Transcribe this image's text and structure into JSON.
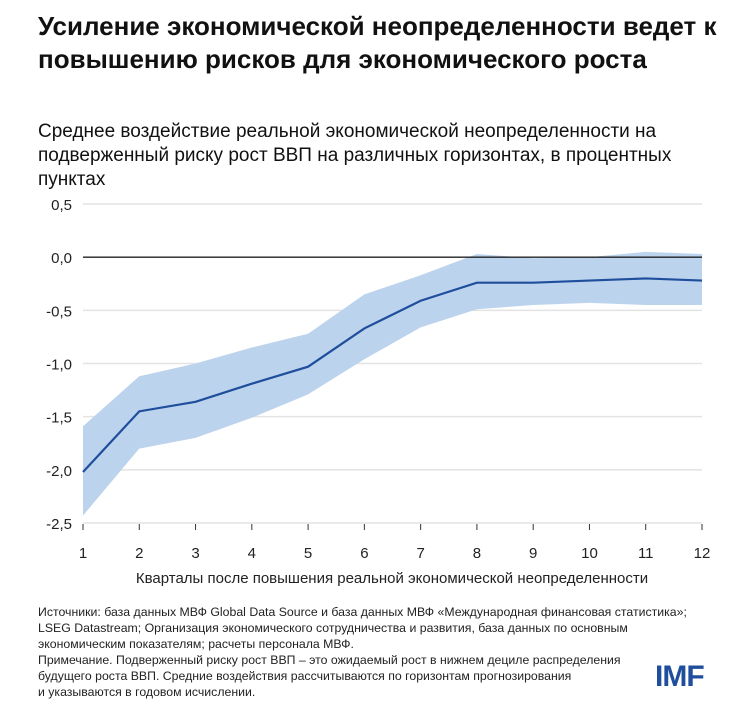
{
  "title": "Усиление экономической неопределенности ведет к повышению рисков для экономического роста",
  "subtitle": "Среднее воздействие реальной экономической неопределенности на подверженный риску рост ВВП на различных горизонтах, в процентных пунктах",
  "notes": {
    "sources": "Источники: база данных МВФ Global Data Source и база данных МВФ «Международная финансовая статистика»;",
    "sources2": "LSEG Datastream; Организация экономического сотрудничества и развития, база данных по основным",
    "sources3": "экономическим показателям; расчеты персонала МВФ.",
    "note1": "Примечание. Подверженный риску рост ВВП – это ожидаемый рост в нижнем дециле распределения",
    "note2": "будущего роста ВВП. Средние воздействия рассчитываются по горизонтам прогнозирования",
    "note3": "и указываются в годовом исчислении."
  },
  "logo": "IMF",
  "chart_data": {
    "type": "line",
    "xlabel": "Кварталы после повышения реальной экономической неопределенности",
    "ylabel": "",
    "x": [
      1,
      2,
      3,
      4,
      5,
      6,
      7,
      8,
      9,
      10,
      11,
      12
    ],
    "x_tick_labels": [
      "1",
      "2",
      "3",
      "4",
      "5",
      "6",
      "7",
      "8",
      "9",
      "10",
      "11",
      "12"
    ],
    "y_tick_labels": [
      "0,5",
      "0,0",
      "-0,5",
      "-1,0",
      "-1,5",
      "-2,0",
      "-2,5"
    ],
    "y_ticks": [
      0.5,
      0,
      -0.5,
      -1,
      -1.5,
      -2,
      -2.5
    ],
    "ylim": [
      -2.5,
      0.5
    ],
    "grid": true,
    "series": [
      {
        "name": "Среднее воздействие",
        "values": [
          -2.02,
          -1.45,
          -1.36,
          -1.19,
          -1.03,
          -0.67,
          -0.41,
          -0.24,
          -0.24,
          -0.22,
          -0.2,
          -0.22
        ],
        "color": "#1f4e9c"
      },
      {
        "name": "Верхняя граница",
        "values": [
          -1.59,
          -1.12,
          -1.0,
          -0.85,
          -0.72,
          -0.35,
          -0.17,
          0.03,
          -0.01,
          0.0,
          0.05,
          0.03
        ]
      },
      {
        "name": "Нижняя граница",
        "values": [
          -2.43,
          -1.8,
          -1.7,
          -1.51,
          -1.29,
          -0.96,
          -0.66,
          -0.49,
          -0.45,
          -0.43,
          -0.45,
          -0.45
        ]
      }
    ],
    "band_color": "#bcd3ed"
  }
}
